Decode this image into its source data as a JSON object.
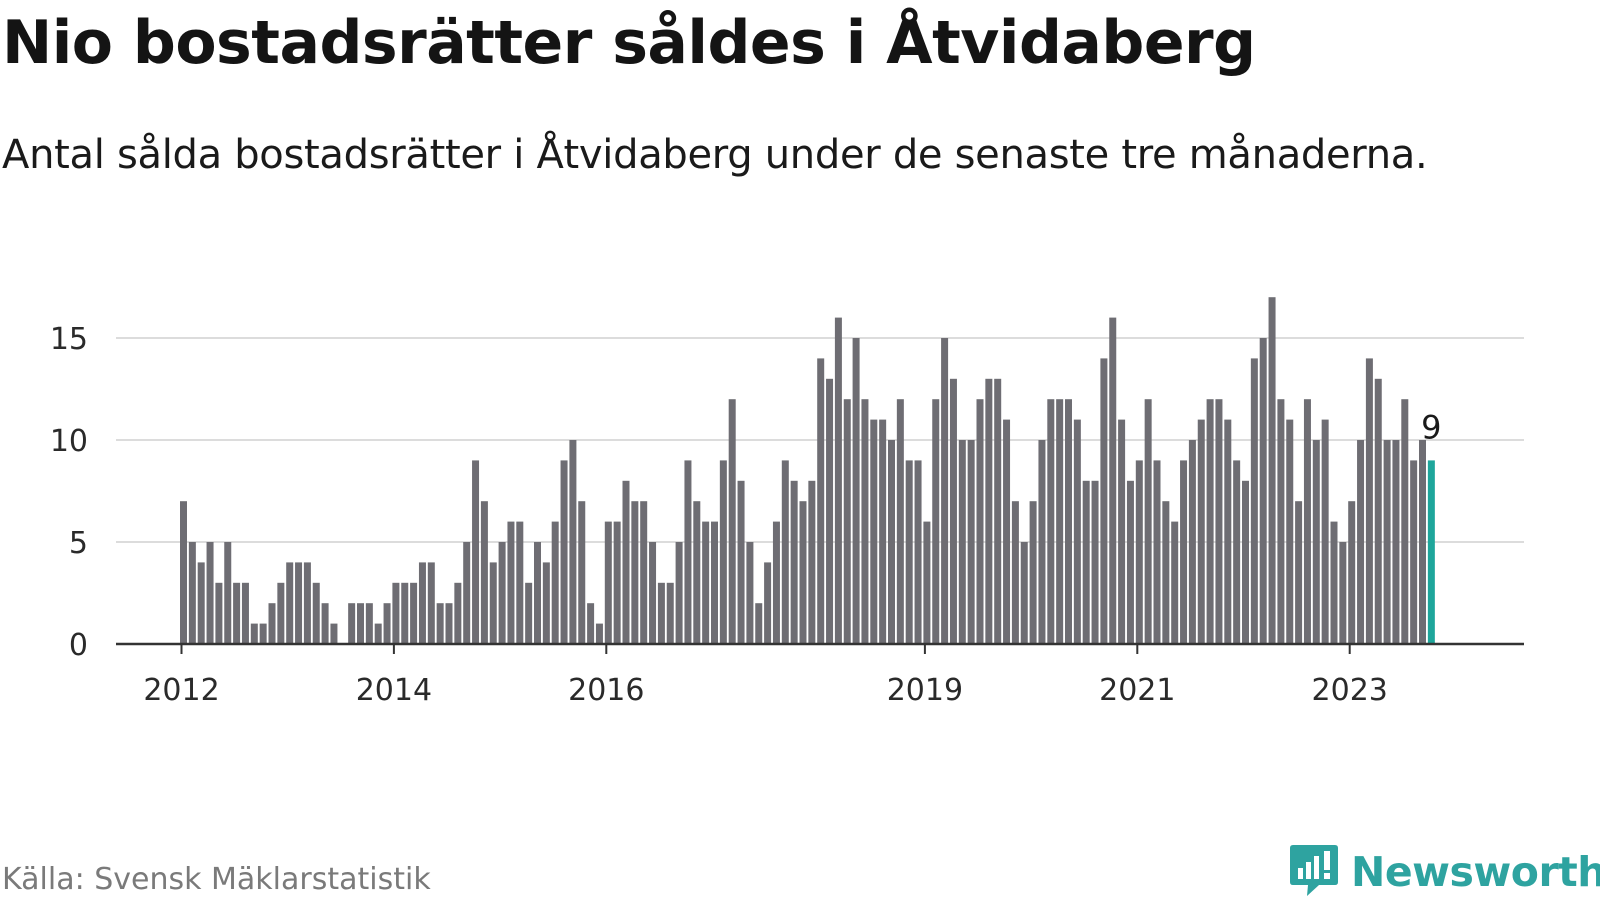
{
  "header": {
    "title": "Nio bostadsrätter såldes i Åtvidaberg",
    "subtitle": "Antal sålda bostadsrätter i Åtvidaberg under de senaste tre månaderna."
  },
  "footer": {
    "source": "Källa: Svensk Mäklarstatistik",
    "brand": "Newsworthy",
    "brand_icon": "newsworthy-logo-icon"
  },
  "colors": {
    "bar": "#6e6d73",
    "highlight": "#1ea69b",
    "grid": "#dcdcdc",
    "axis": "#333333",
    "brand": "#2ea3a0"
  },
  "chart_data": {
    "type": "bar",
    "x_start": "2012-01",
    "x_end": "2023-09",
    "x_tick_labels": [
      {
        "date": "2012-01",
        "label": "2012"
      },
      {
        "date": "2014-01",
        "label": "2014"
      },
      {
        "date": "2016-01",
        "label": "2016"
      },
      {
        "date": "2019-01",
        "label": "2019"
      },
      {
        "date": "2021-01",
        "label": "2021"
      },
      {
        "date": "2023-01",
        "label": "2023"
      }
    ],
    "y_ticks": [
      0,
      5,
      10,
      15
    ],
    "ylim": [
      0,
      17
    ],
    "grid": true,
    "highlight_last": true,
    "last_value_label": "9",
    "values": [
      7,
      5,
      4,
      5,
      3,
      5,
      3,
      3,
      1,
      1,
      2,
      3,
      4,
      4,
      4,
      3,
      2,
      1,
      0,
      2,
      2,
      2,
      1,
      2,
      3,
      3,
      3,
      4,
      4,
      2,
      2,
      3,
      5,
      9,
      7,
      4,
      5,
      6,
      6,
      3,
      5,
      4,
      6,
      9,
      10,
      7,
      2,
      1,
      6,
      6,
      8,
      7,
      7,
      5,
      3,
      3,
      5,
      9,
      7,
      6,
      6,
      9,
      12,
      8,
      5,
      2,
      4,
      6,
      9,
      8,
      7,
      8,
      14,
      13,
      16,
      12,
      15,
      12,
      11,
      11,
      10,
      12,
      9,
      9,
      6,
      12,
      15,
      13,
      10,
      10,
      12,
      13,
      13,
      11,
      7,
      5,
      7,
      10,
      12,
      12,
      12,
      11,
      8,
      8,
      14,
      16,
      11,
      8,
      9,
      12,
      9,
      7,
      6,
      9,
      10,
      11,
      12,
      12,
      11,
      9,
      8,
      14,
      15,
      17,
      12,
      11,
      7,
      12,
      10,
      11,
      6,
      5,
      7,
      10,
      14,
      13,
      10,
      10,
      12,
      9,
      10,
      9
    ]
  }
}
